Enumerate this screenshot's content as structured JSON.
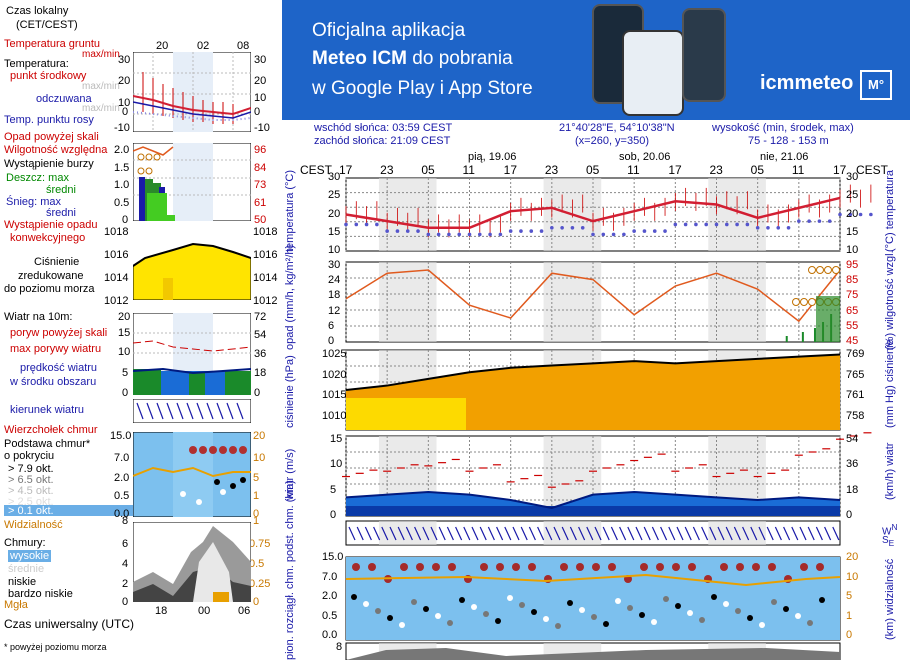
{
  "legend": {
    "time_local_1": "Czas lokalny",
    "time_local_2": "(CET/CEST)",
    "ground_temp_1": "Temperatura gruntu",
    "ground_temp_2": "max/min",
    "temperature": "Temperatura:",
    "mid_point": "punkt środkowy",
    "maxmin_1": "max/min",
    "perceived": "odczuwana",
    "maxmin_2": "max/min",
    "dew_point": "Temp. punktu rosy",
    "precip_above": "Opad powyżej skali",
    "humidity": "Wilgotność względna",
    "storm": "Wystąpienie burzy",
    "rain_max": "Deszcz: max",
    "rain_avg": "średni",
    "snow_max": "Śnieg:     max",
    "snow_avg": "średni",
    "convective": "Wystąpienie opadu",
    "convective_2": "konwekcyjnego",
    "pressure_1": "Ciśnienie",
    "pressure_2": "zredukowane",
    "pressure_3": "do poziomu morza",
    "wind_10m": "Wiatr na 10m:",
    "gust_above": "poryw powyżej skali",
    "max_gust": "max porywy wiatru",
    "wind_speed_1": "prędkość wiatru",
    "wind_speed_2": "w środku obszaru",
    "wind_dir": "kierunek wiatru",
    "cloud_top": "Wierzchołek chmur",
    "cloud_base_1": "Podstawa chmur*",
    "cloud_base_2": "o pokryciu",
    "okt_79": "> 7.9 okt.",
    "okt_65": "> 6.5 okt.",
    "okt_45": "> 4.5 okt.",
    "okt_25": "> 2.5 okt.",
    "okt_01": "> 0.1 okt.",
    "visibility": "Widzialność",
    "clouds": "Chmury:",
    "high": "wysokie",
    "medium": "średnie",
    "low": "niskie",
    "very_low": "bardzo niskie",
    "fog": "Mgła",
    "utc": "Czas uniwersalny (UTC)",
    "footnote": "* powyżej poziomu morza",
    "top_hours": [
      "20",
      "02",
      "08"
    ],
    "bottom_hours": [
      "18",
      "00",
      "06"
    ],
    "temp_ticks": [
      "30",
      "20",
      "10",
      "0",
      "-10"
    ],
    "precip_ticks": [
      "2.0",
      "1.5",
      "1.0",
      "0.5",
      "0"
    ],
    "humid_ticks": [
      "96",
      "84",
      "73",
      "61",
      "50"
    ],
    "press_ticks": [
      "1018",
      "1016",
      "1014",
      "1012"
    ],
    "wind_ticks_ms": [
      "20",
      "15",
      "10",
      "5",
      "0"
    ],
    "wind_ticks_kmh": [
      "72",
      "54",
      "36",
      "18",
      "0"
    ],
    "cloudbase_ticks": [
      "15.0",
      "7.0",
      "2.0",
      "0.5",
      "0.0"
    ],
    "vis_ticks": [
      "20",
      "10",
      "5",
      "1",
      "0"
    ],
    "clouds_ticks": [
      "6",
      "4",
      "2",
      "0"
    ],
    "clouds_ticks_r": [
      "0.75",
      "0.5",
      "0.25",
      "0"
    ],
    "clouds_top": "8",
    "vis_top": "1"
  },
  "banner": {
    "line1": "Oficjalna aplikacja",
    "line2a": "Meteo ICM",
    "line2b": " do pobrania",
    "line3": "w Google Play i App Store",
    "brand": "icmmeteo",
    "brand_badge": "M°"
  },
  "info": {
    "sunrise": "wschód słońca: 03:59 CEST",
    "sunset": "zachód słońca: 21:09 CEST",
    "coords": "21°40'28\"E, 54°10'38\"N",
    "grid": "(x=260,  y=350)",
    "alt_label": "wysokość (min, środek, max)",
    "alt_values": "75 - 128 - 153 m"
  },
  "main": {
    "tz": "CEST",
    "hours": [
      "17",
      "23",
      "05",
      "11",
      "17",
      "23",
      "05",
      "11",
      "17",
      "23",
      "05",
      "11",
      "17"
    ],
    "days": [
      "pią, 19.06",
      "sob, 20.06",
      "nie, 21.06"
    ],
    "temp_label": "temperatura",
    "temp_unit": "(°C)",
    "temp_ticks": [
      "30",
      "25",
      "20",
      "15",
      "10"
    ],
    "precip_label": "opad",
    "precip_unit": "(mm/h, kg/m²/h)",
    "precip_ticks": [
      "30",
      "24",
      "18",
      "12",
      "6",
      "0"
    ],
    "humid_label": "wilgotność wzgl.",
    "humid_unit": "(%)",
    "humid_ticks": [
      "95",
      "85",
      "75",
      "65",
      "55",
      "45"
    ],
    "press_label": "ciśnienie",
    "press_unit": "(hPa)",
    "press_ticks": [
      "1025",
      "1020",
      "1015",
      "1010"
    ],
    "press_label_r": "ciśnienie",
    "press_unit_r": "(mm Hg)",
    "press_ticks_r": [
      "769",
      "765",
      "761",
      "758"
    ],
    "wind_label": "wiatr",
    "wind_unit": "(m/s)",
    "wind_ticks": [
      "15",
      "10",
      "5",
      "0"
    ],
    "wind_unit_r": "(km/h)",
    "wind_ticks_r": [
      "54",
      "36",
      "18",
      "0"
    ],
    "cloud_label": "podst. chm.",
    "cloud_label2": "pion. rozciągł. chm.",
    "cloud_unit": "(km)",
    "cloud_ticks": [
      "15.0",
      "7.0",
      "2.0",
      "0.5",
      "0.0"
    ],
    "vis_label": "widzialność",
    "vis_unit": "(km)",
    "vis_ticks": [
      "20",
      "10",
      "5",
      "1",
      "0"
    ],
    "bottom_tick": "8",
    "dir_letters": "W",
    "dir_letters2": "N",
    "dir_letters3": "E",
    "dir_letters4": "S"
  },
  "chart_data": [
    {
      "type": "line",
      "title": "temperatura",
      "ylabel": "(°C)",
      "ylim": [
        8,
        30
      ],
      "x": [
        "17",
        "23",
        "05",
        "11",
        "17",
        "23",
        "05",
        "11",
        "17",
        "23",
        "05",
        "11",
        "17"
      ],
      "series": [
        {
          "name": "temperatura",
          "values": [
            19,
            17,
            15,
            15,
            20,
            21,
            17,
            20,
            23,
            22,
            18,
            21,
            24
          ]
        },
        {
          "name": "punkt rosy",
          "values": [
            16,
            14,
            13,
            13,
            14,
            15,
            13,
            14,
            16,
            16,
            15,
            17,
            19
          ]
        }
      ]
    },
    {
      "type": "line",
      "title": "wilgotność wzgl.",
      "ylabel": "(%)",
      "ylim": [
        45,
        95
      ],
      "x": [
        "17",
        "23",
        "05",
        "11",
        "17",
        "23",
        "05",
        "11",
        "17",
        "23",
        "05",
        "11",
        "17"
      ],
      "series": [
        {
          "name": "wilgotność",
          "values": [
            72,
            88,
            90,
            68,
            60,
            88,
            84,
            62,
            80,
            88,
            78,
            58,
            90
          ]
        }
      ]
    },
    {
      "type": "area",
      "title": "ciśnienie",
      "ylabel": "(hPa)",
      "ylim": [
        1008,
        1026
      ],
      "x": [
        "17",
        "23",
        "05",
        "11",
        "17",
        "23",
        "05",
        "11",
        "17",
        "23",
        "05",
        "11",
        "17"
      ],
      "series": [
        {
          "name": "ciśnienie",
          "values": [
            1017,
            1018,
            1019.5,
            1021,
            1022,
            1022.5,
            1023,
            1023.5,
            1023,
            1023.5,
            1024,
            1024.5,
            1025
          ]
        }
      ]
    },
    {
      "type": "area",
      "title": "wiatr",
      "ylabel": "(m/s)",
      "ylim": [
        0,
        15
      ],
      "x": [
        "17",
        "23",
        "05",
        "11",
        "17",
        "23",
        "05",
        "11",
        "17",
        "23",
        "05",
        "11",
        "17"
      ],
      "series": [
        {
          "name": "prędkość",
          "values": [
            3.5,
            4,
            4.5,
            4,
            3,
            1.5,
            4,
            4.5,
            4,
            3.5,
            3,
            3.5,
            3
          ]
        },
        {
          "name": "porywy",
          "values": [
            8,
            9,
            10,
            9,
            7,
            6,
            9,
            11,
            9,
            8,
            8,
            12,
            15
          ]
        }
      ]
    }
  ],
  "colors": {
    "banner": "#1e64c8",
    "temp": "#d21e32",
    "dew": "#5555cc",
    "humid": "#e05a1e",
    "pressure_fill": "#f2a000",
    "pressure_fill_2": "#ffe400",
    "wind_fill": "#1a6cd6",
    "night": "#dcdcdc",
    "cloud_bg": "#7cc0ee"
  }
}
